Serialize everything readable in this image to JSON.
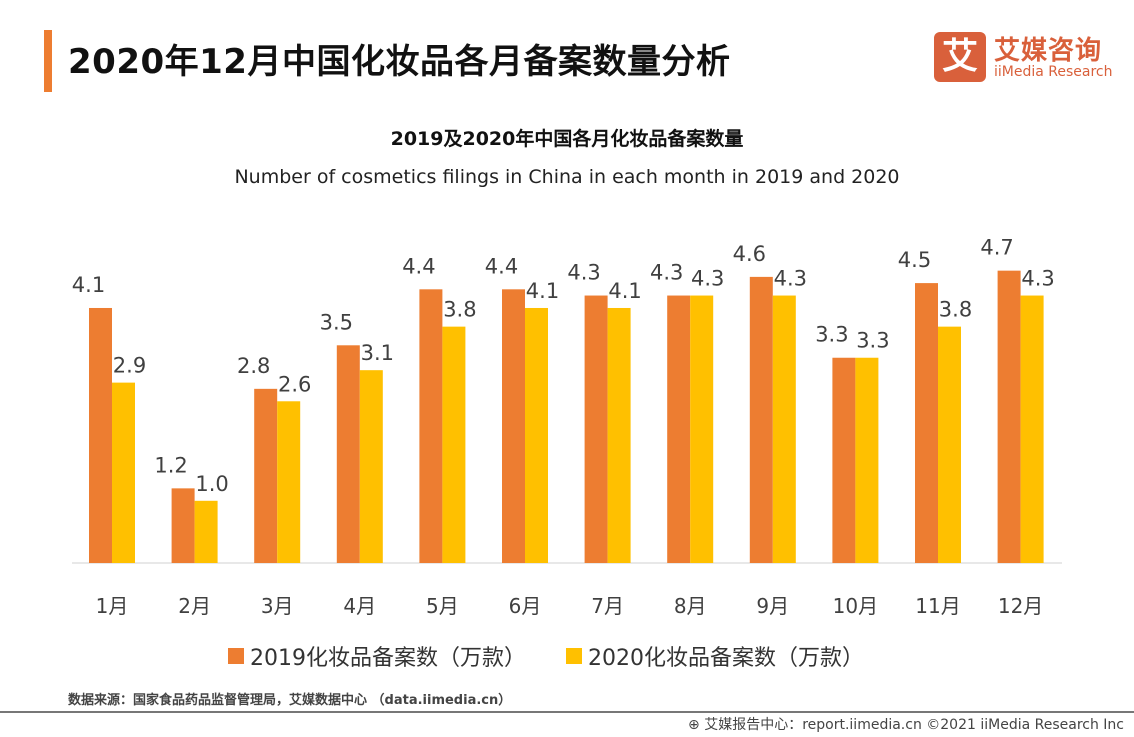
{
  "header": {
    "title": "2020年12月中国化妆品各月备案数量分析"
  },
  "logo": {
    "mark": "艾",
    "cn": "艾媒咨询",
    "en": "iiMedia Research"
  },
  "colors": {
    "accent": "#ed7d31",
    "series2019": "#ed7d31",
    "series2020": "#ffc000"
  },
  "chart_data": {
    "type": "bar",
    "title": "2019及2020年中国各月化妆品备案数量",
    "subtitle": "Number of cosmetics filings in China in each month in 2019 and 2020",
    "categories": [
      "1月",
      "2月",
      "3月",
      "4月",
      "5月",
      "6月",
      "7月",
      "8月",
      "9月",
      "10月",
      "11月",
      "12月"
    ],
    "series": [
      {
        "name": "2019化妆品备案数（万款）",
        "values": [
          4.1,
          1.2,
          2.8,
          3.5,
          4.4,
          4.4,
          4.3,
          4.3,
          4.6,
          3.3,
          4.5,
          4.7
        ]
      },
      {
        "name": "2020化妆品备案数（万款）",
        "values": [
          2.9,
          1.0,
          2.6,
          3.1,
          3.8,
          4.1,
          4.1,
          4.3,
          4.3,
          3.3,
          3.8,
          4.3
        ]
      }
    ],
    "ylim": [
      0,
      5
    ],
    "grid": false,
    "legend": "bottom"
  },
  "footer": {
    "source": "数据来源：国家食品药品监督管理局，艾媒数据中心 （data.iimedia.cn）",
    "credit": "艾媒报告中心：report.iimedia.cn  ©2021  iiMedia Research  Inc"
  }
}
